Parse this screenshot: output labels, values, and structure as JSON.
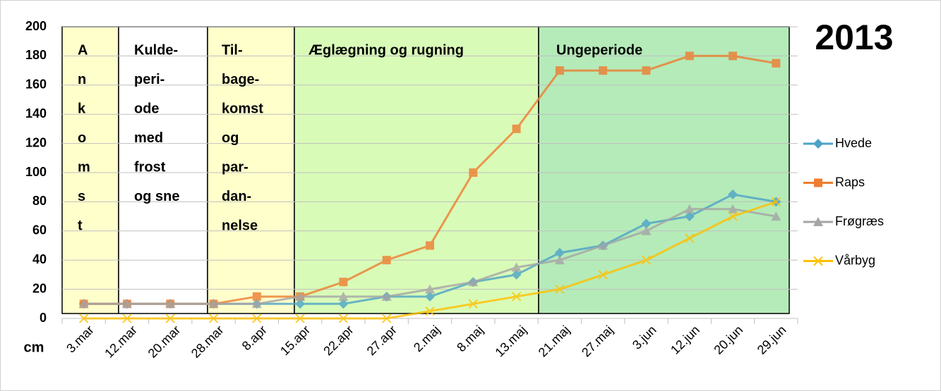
{
  "chart_data": {
    "type": "line",
    "title": "2013",
    "y_label": "cm",
    "categories": [
      "3.mar",
      "12.mar",
      "20.mar",
      "28.mar",
      "8.apr",
      "15.apr",
      "22.apr",
      "27.apr",
      "2.maj",
      "8.maj",
      "13.maj",
      "21.maj",
      "27.maj",
      "3.jun",
      "12.jun",
      "20.jun",
      "29.jun"
    ],
    "series": [
      {
        "name": "Hvede",
        "color": "#4ba3c7",
        "marker": "diamond",
        "values": [
          10,
          10,
          10,
          10,
          10,
          10,
          10,
          15,
          15,
          25,
          30,
          45,
          50,
          65,
          70,
          85,
          80
        ]
      },
      {
        "name": "Raps",
        "color": "#ed7d31",
        "marker": "square",
        "values": [
          10,
          10,
          10,
          10,
          15,
          15,
          25,
          40,
          50,
          100,
          130,
          170,
          170,
          170,
          180,
          180,
          175
        ]
      },
      {
        "name": "Frøgræs",
        "color": "#a5a5a5",
        "marker": "triangle",
        "values": [
          10,
          10,
          10,
          10,
          10,
          15,
          15,
          15,
          20,
          25,
          35,
          40,
          50,
          60,
          75,
          75,
          70
        ]
      },
      {
        "name": "Vårbyg",
        "color": "#ffc000",
        "marker": "x",
        "values": [
          0,
          0,
          0,
          0,
          0,
          0,
          0,
          0,
          5,
          10,
          15,
          20,
          30,
          40,
          55,
          70,
          80
        ]
      }
    ],
    "annotations": [
      {
        "color": "#ffffcc",
        "lines": [
          "A",
          "n",
          "k",
          "o",
          "m",
          "s",
          "t"
        ]
      },
      {
        "color": "#ffffff",
        "lines": [
          "Kulde-",
          "peri-",
          "ode",
          "med",
          "frost",
          "og sne"
        ]
      },
      {
        "color": "#ffffcc",
        "lines": [
          "Til-",
          "bage-",
          "komst",
          "og",
          "par-",
          "dan-",
          "nelse"
        ]
      },
      {
        "color": "#d9fbb8",
        "lines": [
          "Æglægning og rugning"
        ]
      },
      {
        "color": "#b5ebb9",
        "lines": [
          "Ungeperiode"
        ]
      }
    ],
    "ylim": [
      0,
      200
    ],
    "yticks": [
      0,
      20,
      40,
      60,
      80,
      100,
      120,
      140,
      160,
      180,
      200
    ],
    "grid": true,
    "legend": "right"
  }
}
